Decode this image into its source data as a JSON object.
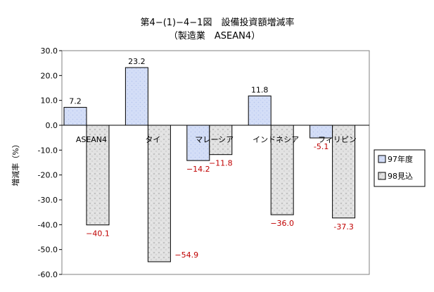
{
  "chart_data": {
    "type": "bar",
    "title": "第4−(1)−4−1図　設備投資額増減率",
    "subtitle": "（製造業　ASEAN4）",
    "ylabel": "増減率（%）",
    "xlabel": "",
    "ylim": [
      -60,
      30
    ],
    "yticks": [
      "30.0",
      "20.0",
      "10.0",
      "0.0",
      "-10.0",
      "-20.0",
      "-30.0",
      "-40.0",
      "-50.0",
      "-60.0"
    ],
    "categories": [
      "ASEAN4",
      "タイ",
      "マレーシア",
      "インドネシア",
      "フィリピン"
    ],
    "series": [
      {
        "name": "97年度",
        "values": [
          7.2,
          23.2,
          -14.2,
          11.8,
          -5.1
        ],
        "labels": [
          "7.2",
          "23.2",
          "−14.2",
          "11.8",
          "-5.1"
        ],
        "color": "#ccd9f5"
      },
      {
        "name": "98見込",
        "values": [
          -40.1,
          -54.9,
          -11.8,
          -36.0,
          -37.3
        ],
        "labels": [
          "−40.1",
          "−54.9",
          "−11.8",
          "−36.0",
          "-37.3"
        ],
        "color": "#dcdcdc"
      }
    ],
    "grid": false,
    "legend": "right"
  }
}
